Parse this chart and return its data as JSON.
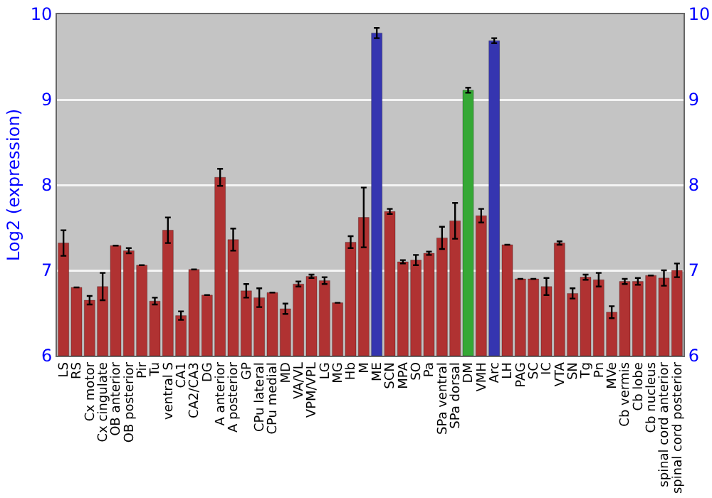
{
  "chart_data": {
    "type": "bar",
    "ylabel": "Log2 (expression)",
    "categories": [
      "LS",
      "RS",
      "Cx motor",
      "Cx cingulate",
      "OB anterior",
      "OB posterior",
      "Pir",
      "Tu",
      "ventral S",
      "CA1",
      "CA2/CA3",
      "DG",
      "A anterior",
      "A posterior",
      "GP",
      "CPu lateral",
      "CPu medial",
      "MD",
      "VA/VL",
      "VPM/VPL",
      "LG",
      "MG",
      "Hb",
      "M",
      "ME",
      "SCN",
      "MPA",
      "SO",
      "Pa",
      "SPa ventral",
      "SPa dorsal",
      "DM",
      "VMH",
      "Arc",
      "LH",
      "PAG",
      "SC",
      "IC",
      "VTA",
      "SN",
      "Tg",
      "Pn",
      "MVe",
      "Cb vermis",
      "Cb lobe",
      "Cb nucleus",
      "spinal cord anterior",
      "spinal cord posterior"
    ],
    "values": [
      7.32,
      6.8,
      6.65,
      6.81,
      7.29,
      7.23,
      7.06,
      6.64,
      7.47,
      6.47,
      7.01,
      6.71,
      8.09,
      7.36,
      6.76,
      6.68,
      6.74,
      6.55,
      6.84,
      6.93,
      6.88,
      6.62,
      7.33,
      7.62,
      9.78,
      7.69,
      7.1,
      7.12,
      7.2,
      7.38,
      7.58,
      9.11,
      7.64,
      9.69,
      7.3,
      6.9,
      6.9,
      6.81,
      7.32,
      6.73,
      6.92,
      6.89,
      6.51,
      6.87,
      6.87,
      6.94,
      6.91,
      7.0
    ],
    "errors": [
      0.15,
      null,
      0.05,
      0.16,
      null,
      0.03,
      null,
      0.04,
      0.15,
      0.05,
      null,
      null,
      0.1,
      0.13,
      0.08,
      0.11,
      null,
      0.06,
      0.03,
      0.02,
      0.04,
      null,
      0.07,
      0.35,
      0.06,
      0.03,
      0.02,
      0.06,
      0.02,
      0.13,
      0.21,
      0.03,
      0.08,
      0.03,
      null,
      null,
      null,
      0.1,
      0.02,
      0.06,
      0.03,
      0.08,
      0.07,
      0.03,
      0.04,
      null,
      0.09,
      0.08
    ],
    "colors": [
      "#b03232",
      "#b03232",
      "#b03232",
      "#b03232",
      "#b03232",
      "#b03232",
      "#b03232",
      "#b03232",
      "#b03232",
      "#b03232",
      "#b03232",
      "#b03232",
      "#b03232",
      "#b03232",
      "#b03232",
      "#b03232",
      "#b03232",
      "#b03232",
      "#b03232",
      "#b03232",
      "#b03232",
      "#b03232",
      "#b03232",
      "#b03232",
      "#3535b0",
      "#b03232",
      "#b03232",
      "#b03232",
      "#b03232",
      "#b03232",
      "#b03232",
      "#35a835",
      "#b03232",
      "#3535b0",
      "#b03232",
      "#b03232",
      "#b03232",
      "#b03232",
      "#b03232",
      "#b03232",
      "#b03232",
      "#b03232",
      "#b03232",
      "#b03232",
      "#b03232",
      "#b03232",
      "#b03232",
      "#b03232"
    ],
    "ylim": [
      6,
      10
    ],
    "yticks": [
      6,
      7,
      8,
      9,
      10
    ],
    "y2lim": [
      6,
      10
    ],
    "y2ticks": [
      6,
      7,
      8,
      9,
      10
    ],
    "grid": "y"
  }
}
